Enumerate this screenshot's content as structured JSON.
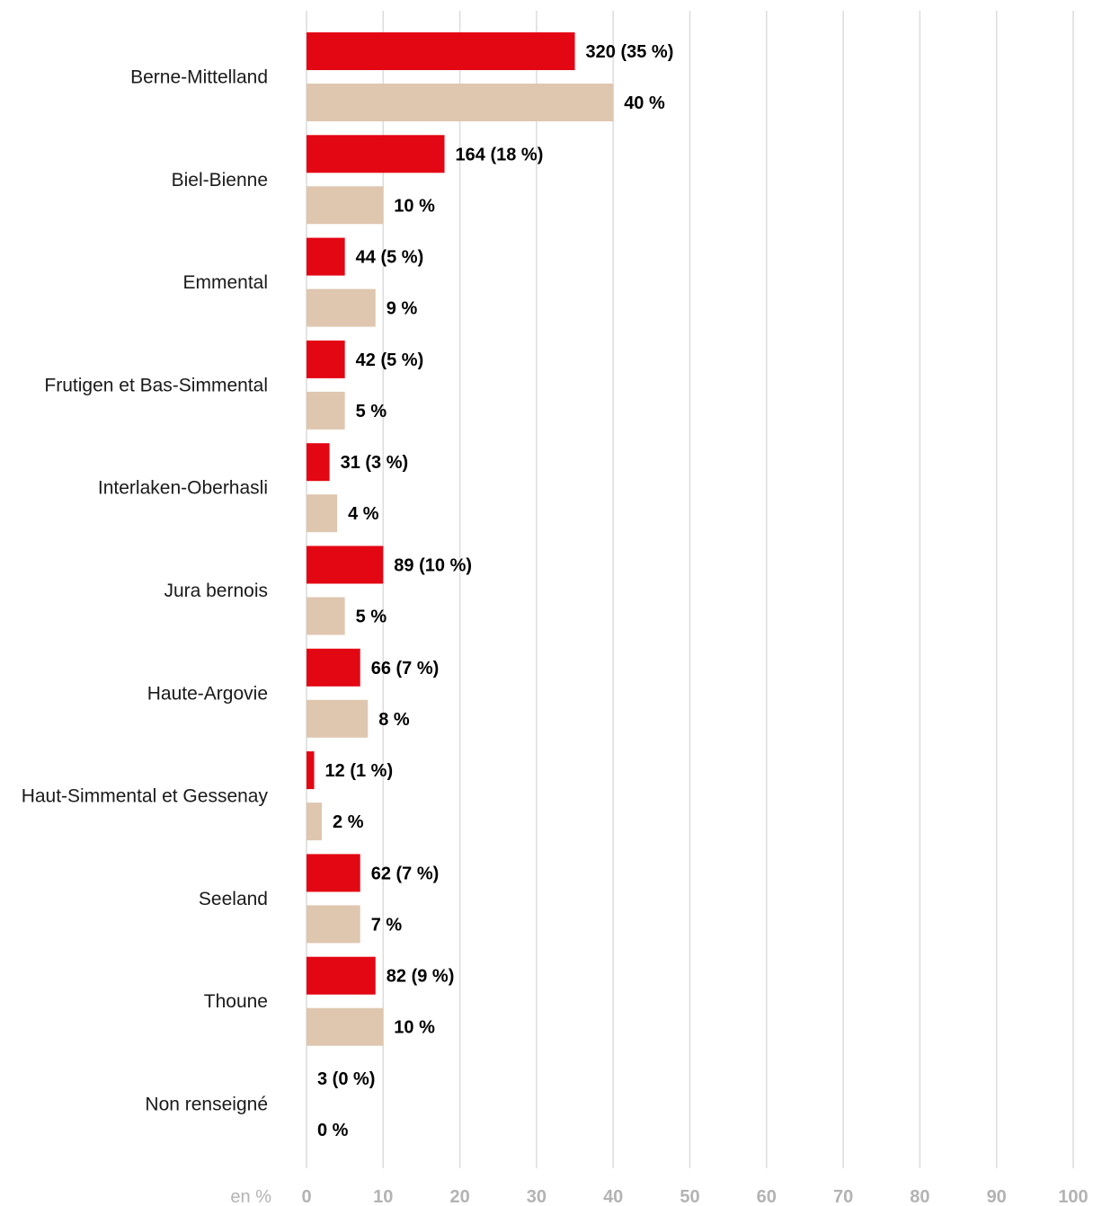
{
  "chart_data": {
    "type": "bar",
    "orientation": "horizontal",
    "categories": [
      "Berne-Mittelland",
      "Biel-Bienne",
      "Emmental",
      "Frutigen et Bas-Simmental",
      "Interlaken-Oberhasli",
      "Jura bernois",
      "Haute-Argovie",
      "Haut-Simmental et Gessenay",
      "Seeland",
      "Thoune",
      "Non renseigné"
    ],
    "series": [
      {
        "color": "#e30613",
        "values": [
          35,
          18,
          5,
          5,
          3,
          10,
          7,
          1,
          7,
          9,
          0
        ],
        "labels": [
          "320 (35 %)",
          "164 (18 %)",
          "44 (5 %)",
          "42 (5 %)",
          "31 (3 %)",
          "89 (10 %)",
          "66 (7 %)",
          "12 (1 %)",
          "62 (7 %)",
          "82 (9 %)",
          "3 (0 %)"
        ]
      },
      {
        "color": "#dfc6af",
        "values": [
          40,
          10,
          9,
          5,
          4,
          5,
          8,
          2,
          7,
          10,
          0
        ],
        "labels": [
          "40 %",
          "10 %",
          "9 %",
          "5 %",
          "4 %",
          "5 %",
          "8 %",
          "2 %",
          "7 %",
          "10 %",
          "0 %"
        ]
      }
    ],
    "xlim": [
      0,
      100
    ],
    "xticks": [
      "0",
      "10",
      "20",
      "30",
      "40",
      "50",
      "60",
      "70",
      "80",
      "90",
      "100"
    ],
    "xlabel": "en %",
    "grid": true,
    "legend": "none"
  }
}
